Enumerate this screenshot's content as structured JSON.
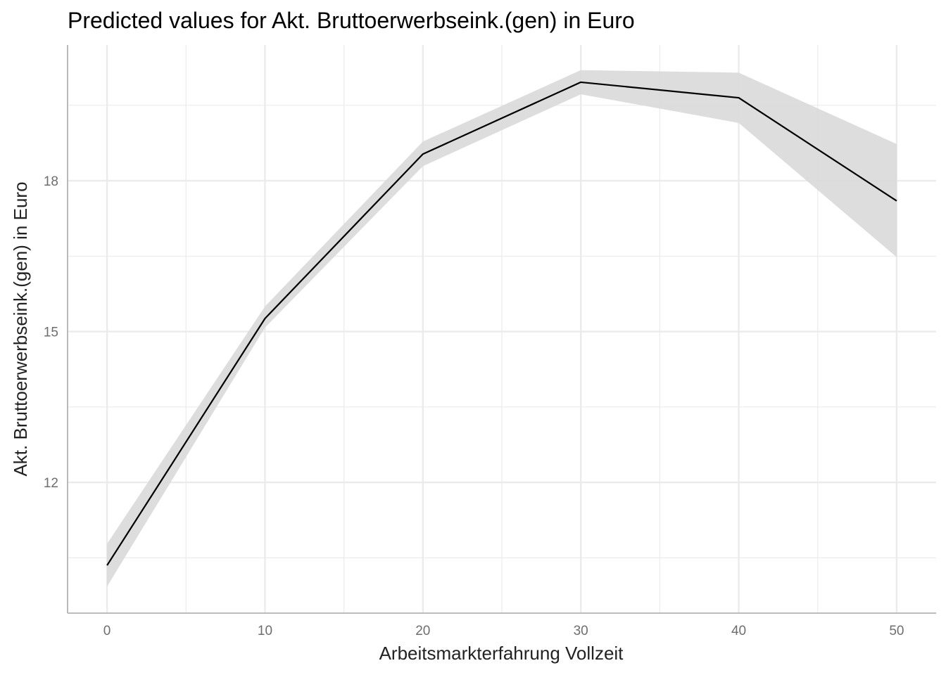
{
  "chart_data": {
    "type": "line",
    "title": "Predicted values for Akt. Bruttoerwerbseink.(gen) in Euro",
    "xlabel": "Arbeitsmarkterfahrung Vollzeit",
    "ylabel": "Akt. Bruttoerwerbseink.(gen) in Euro",
    "x": [
      0,
      10,
      20,
      30,
      40,
      50
    ],
    "series": [
      {
        "values": [
          10.35,
          15.26,
          18.53,
          19.96,
          19.65,
          17.6
        ],
        "ci_low": [
          9.93,
          15.08,
          18.29,
          19.72,
          19.15,
          16.48
        ],
        "ci_high": [
          10.78,
          15.5,
          18.78,
          20.2,
          20.15,
          18.73
        ]
      }
    ],
    "xticks": [
      0,
      10,
      20,
      30,
      40,
      50
    ],
    "yticks": [
      12,
      15,
      18
    ],
    "xlim": [
      -2.5,
      52.5
    ],
    "ylim": [
      9.4,
      20.7
    ],
    "grid": true,
    "colors": {
      "line": "#000000",
      "ribbon": "#d9d9d9",
      "grid": "#ebebeb",
      "axis": "#b3b3b3"
    }
  }
}
